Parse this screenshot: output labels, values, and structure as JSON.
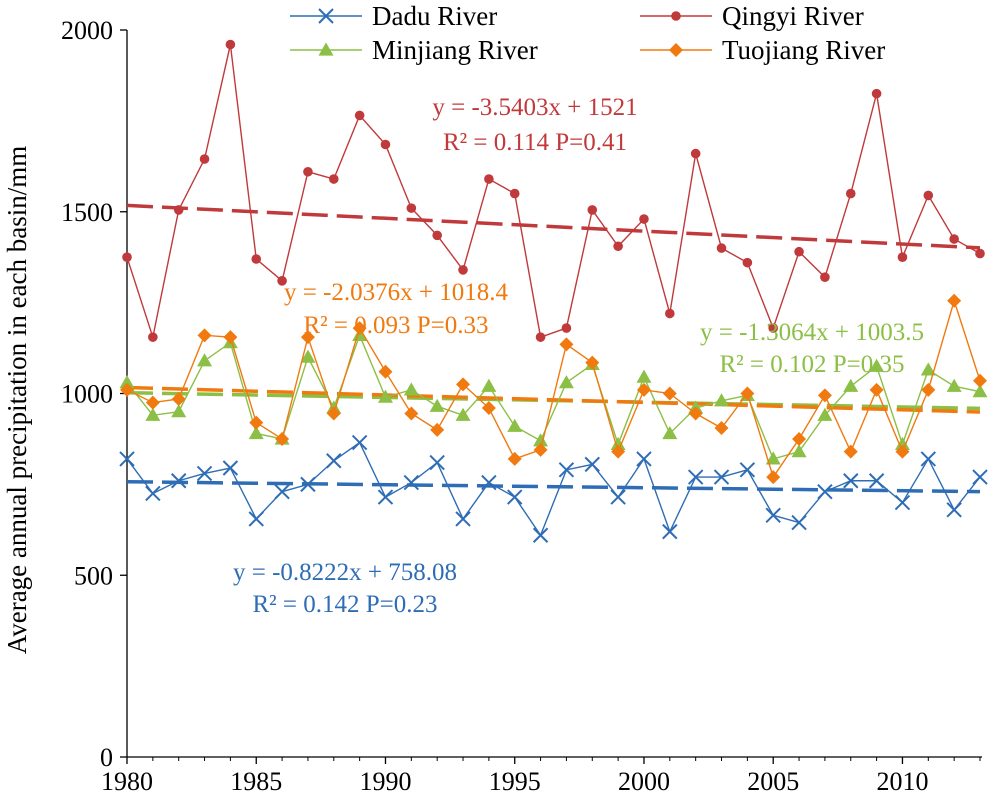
{
  "chart_data": {
    "type": "line",
    "ylabel": "Average annual precipitation in each basin/mm",
    "xlabel": "",
    "xlim": [
      1980,
      2013
    ],
    "ylim": [
      0,
      2000
    ],
    "x_ticks": [
      1980,
      1985,
      1990,
      1995,
      2000,
      2005,
      2010
    ],
    "y_ticks": [
      0,
      500,
      1000,
      1500,
      2000
    ],
    "grid": false,
    "legend_position": "top",
    "x": [
      1980,
      1981,
      1982,
      1983,
      1984,
      1985,
      1986,
      1987,
      1988,
      1989,
      1990,
      1991,
      1992,
      1993,
      1994,
      1995,
      1996,
      1997,
      1998,
      1999,
      2000,
      2001,
      2002,
      2003,
      2004,
      2005,
      2006,
      2007,
      2008,
      2009,
      2010,
      2011,
      2012,
      2013
    ],
    "series": [
      {
        "name": "Dadu River",
        "color": "#2e6db5",
        "marker": "x",
        "values": [
          820,
          725,
          760,
          780,
          795,
          655,
          730,
          750,
          815,
          865,
          715,
          755,
          810,
          655,
          755,
          715,
          610,
          790,
          805,
          715,
          820,
          620,
          770,
          770,
          790,
          665,
          645,
          730,
          760,
          760,
          700,
          820,
          680,
          770
        ],
        "trend": {
          "slope": -0.8222,
          "intercept": 758.08,
          "equation": "y = -0.8222x + 758.08",
          "stats": "R² = 0.142  P=0.23"
        }
      },
      {
        "name": "Qingyi River",
        "color": "#c0393b",
        "marker": "circle",
        "values": [
          1375,
          1155,
          1505,
          1645,
          1960,
          1370,
          1310,
          1610,
          1590,
          1765,
          1685,
          1510,
          1435,
          1340,
          1590,
          1550,
          1155,
          1180,
          1505,
          1405,
          1480,
          1220,
          1660,
          1400,
          1360,
          1180,
          1390,
          1320,
          1550,
          1825,
          1375,
          1545,
          1425,
          1385
        ],
        "trend": {
          "slope": -3.5403,
          "intercept": 1521,
          "equation": "y = -3.5403x + 1521",
          "stats": "R² = 0.114  P=0.41"
        }
      },
      {
        "name": "Minjiang River",
        "color": "#8cbf45",
        "marker": "triangle",
        "values": [
          1030,
          940,
          950,
          1090,
          1140,
          890,
          875,
          1100,
          960,
          1160,
          990,
          1010,
          965,
          940,
          1020,
          910,
          870,
          1030,
          1080,
          860,
          1045,
          890,
          960,
          980,
          995,
          820,
          840,
          940,
          1020,
          1075,
          860,
          1065,
          1020,
          1005
        ],
        "trend": {
          "slope": -1.3064,
          "intercept": 1003.5,
          "equation": "y = -1.3064x + 1003.5",
          "stats": "R² = 0.102  P=0.35"
        }
      },
      {
        "name": "Tuojiang River",
        "color": "#f07a10",
        "marker": "diamond",
        "values": [
          1010,
          975,
          985,
          1160,
          1155,
          920,
          875,
          1155,
          945,
          1180,
          1060,
          945,
          900,
          1025,
          960,
          820,
          845,
          1135,
          1085,
          840,
          1010,
          1000,
          945,
          905,
          1000,
          770,
          875,
          995,
          840,
          1010,
          840,
          1010,
          1255,
          1035
        ],
        "trend": {
          "slope": -2.0376,
          "intercept": 1018.4,
          "equation": "y = -2.0376x + 1018.4",
          "stats": "R² = 0.093  P=0.33"
        }
      }
    ]
  }
}
